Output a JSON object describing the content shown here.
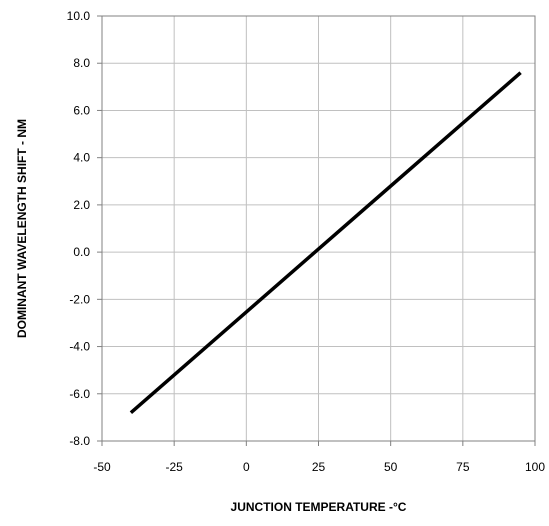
{
  "chart_data": {
    "type": "line",
    "title": "",
    "xlabel": "JUNCTION TEMPERATURE -°C",
    "ylabel": "DOMINANT WAVELENGTH SHIFT - NM",
    "xlim": [
      -50,
      100
    ],
    "ylim": [
      -8,
      10
    ],
    "x_ticks": [
      -50,
      -25,
      0,
      25,
      50,
      75,
      100
    ],
    "x_tick_labels": [
      "-50",
      "-25",
      "0",
      "25",
      "50",
      "75",
      "100"
    ],
    "y_ticks": [
      -8,
      -6,
      -4,
      -2,
      0,
      2,
      4,
      6,
      8,
      10
    ],
    "y_tick_labels": [
      "-8.0",
      "-6.0",
      "-4.0",
      "-2.0",
      "0.0",
      "2.0",
      "4.0",
      "6.0",
      "8.0",
      "10.0"
    ],
    "grid": true,
    "legend": "none",
    "colors": {
      "line": "#000000",
      "grid": "#c0c0c0",
      "axes": "#808080"
    },
    "series": [
      {
        "x": [
          -40,
          95
        ],
        "y": [
          -6.8,
          7.6
        ]
      }
    ]
  }
}
